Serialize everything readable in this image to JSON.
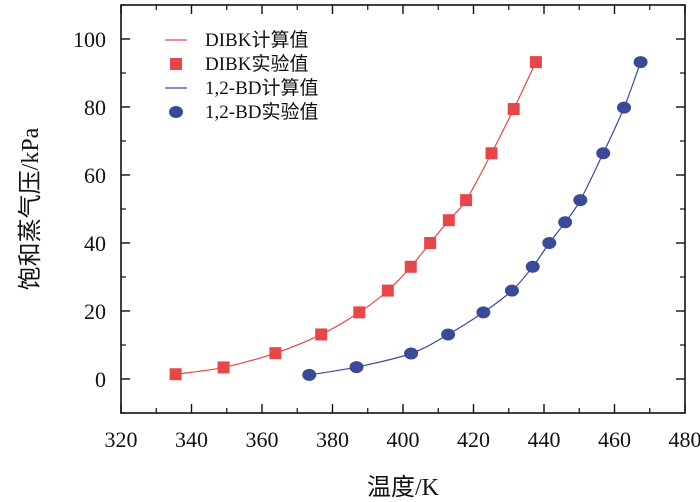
{
  "chart_data": {
    "type": "scatter",
    "title": "",
    "xlabel": "温度/K",
    "ylabel": "饱和蒸气压/kPa",
    "xlim": [
      320,
      480
    ],
    "ylim": [
      -10,
      110
    ],
    "x_ticks": [
      320,
      340,
      360,
      380,
      400,
      420,
      440,
      460,
      480
    ],
    "y_ticks": [
      0,
      20,
      40,
      60,
      80,
      100
    ],
    "x_tick_labels": [
      "320",
      "340",
      "360",
      "380",
      "400",
      "420",
      "440",
      "460",
      "480"
    ],
    "y_tick_labels": [
      "0",
      "20",
      "40",
      "60",
      "80",
      "100"
    ],
    "grid": false,
    "legend_position": "top-left",
    "series": [
      {
        "name": "DIBK计算值",
        "kind": "line",
        "color": "#e8474a",
        "x": [
          335.5,
          349.1,
          363.8,
          376.8,
          387.6,
          395.7,
          402.2,
          407.7,
          413.0,
          417.9,
          425.1,
          431.4,
          437.7
        ],
        "y": [
          1.4,
          3.4,
          7.6,
          13.1,
          19.6,
          26.0,
          33.0,
          40.0,
          46.7,
          52.6,
          66.4,
          79.4,
          93.2
        ]
      },
      {
        "name": "DIBK实验值",
        "kind": "marker",
        "marker": "square",
        "color": "#e8474a",
        "x": [
          335.5,
          349.1,
          363.8,
          376.8,
          387.6,
          395.7,
          402.2,
          407.7,
          413.0,
          417.9,
          425.1,
          431.4,
          437.7
        ],
        "y": [
          1.4,
          3.4,
          7.6,
          13.1,
          19.6,
          26.0,
          33.0,
          40.0,
          46.7,
          52.6,
          66.4,
          79.4,
          93.2
        ]
      },
      {
        "name": "1,2-BD计算值",
        "kind": "line",
        "color": "#3b4a98",
        "x": [
          373.4,
          386.8,
          402.3,
          412.8,
          422.8,
          430.9,
          436.8,
          441.5,
          446.0,
          450.3,
          456.8,
          462.7,
          467.4
        ],
        "y": [
          1.2,
          3.5,
          7.5,
          13.1,
          19.6,
          26.0,
          33.0,
          40.0,
          46.1,
          52.6,
          66.4,
          79.8,
          93.2
        ]
      },
      {
        "name": "1,2-BD实验值",
        "kind": "marker",
        "marker": "ellipse",
        "color": "#3b4a98",
        "x": [
          373.4,
          386.8,
          402.3,
          412.8,
          422.8,
          430.9,
          436.8,
          441.5,
          446.0,
          450.3,
          456.8,
          462.7,
          467.4
        ],
        "y": [
          1.2,
          3.5,
          7.5,
          13.1,
          19.6,
          26.0,
          33.0,
          40.0,
          46.1,
          52.6,
          66.4,
          79.8,
          93.2
        ]
      }
    ]
  }
}
